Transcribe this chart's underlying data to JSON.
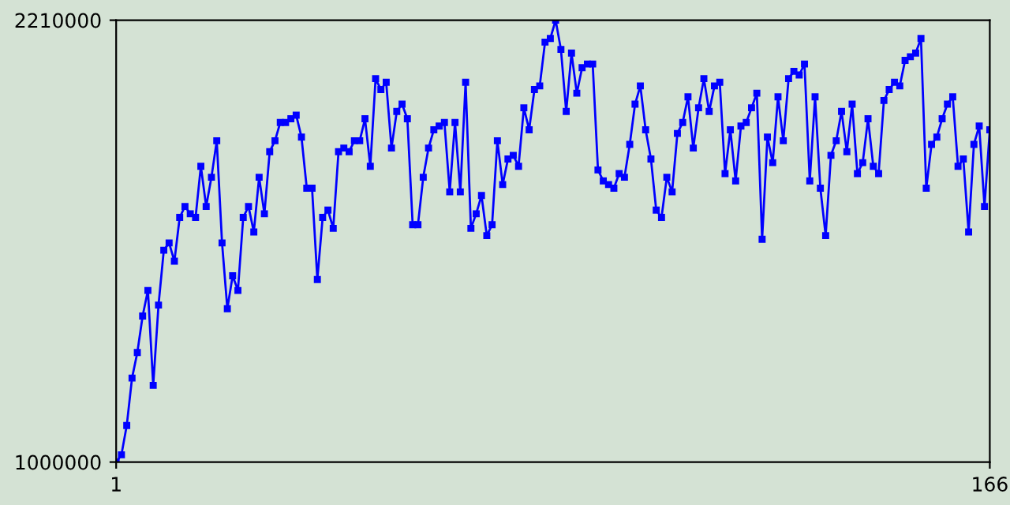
{
  "chart_data": {
    "type": "line",
    "x": [
      1,
      2,
      3,
      4,
      5,
      6,
      7,
      8,
      9,
      10,
      11,
      12,
      13,
      14,
      15,
      16,
      17,
      18,
      19,
      20,
      21,
      22,
      23,
      24,
      25,
      26,
      27,
      28,
      29,
      30,
      31,
      32,
      33,
      34,
      35,
      36,
      37,
      38,
      39,
      40,
      41,
      42,
      43,
      44,
      45,
      46,
      47,
      48,
      49,
      50,
      51,
      52,
      53,
      54,
      55,
      56,
      57,
      58,
      59,
      60,
      61,
      62,
      63,
      64,
      65,
      66,
      67,
      68,
      69,
      70,
      71,
      72,
      73,
      74,
      75,
      76,
      77,
      78,
      79,
      80,
      81,
      82,
      83,
      84,
      85,
      86,
      87,
      88,
      89,
      90,
      91,
      92,
      93,
      94,
      95,
      96,
      97,
      98,
      99,
      100,
      101,
      102,
      103,
      104,
      105,
      106,
      107,
      108,
      109,
      110,
      111,
      112,
      113,
      114,
      115,
      116,
      117,
      118,
      119,
      120,
      121,
      122,
      123,
      124,
      125,
      126,
      127,
      128,
      129,
      130,
      131,
      132,
      133,
      134,
      135,
      136,
      137,
      138,
      139,
      140,
      141,
      142,
      143,
      144,
      145,
      146,
      147,
      148,
      149,
      150,
      151,
      152,
      153,
      154,
      155,
      156,
      157,
      158,
      159,
      160,
      161,
      162,
      163,
      164,
      165,
      166
    ],
    "series": [
      {
        "color": "#0000ff",
        "values": [
          1000000,
          1020000,
          1100000,
          1230000,
          1300000,
          1400000,
          1470000,
          1210000,
          1430000,
          1580000,
          1600000,
          1550000,
          1670000,
          1700000,
          1680000,
          1670000,
          1810000,
          1700000,
          1780000,
          1880000,
          1600000,
          1420000,
          1510000,
          1470000,
          1670000,
          1700000,
          1630000,
          1780000,
          1680000,
          1850000,
          1880000,
          1930000,
          1930000,
          1940000,
          1950000,
          1890000,
          1750000,
          1750000,
          1500000,
          1670000,
          1690000,
          1640000,
          1850000,
          1860000,
          1850000,
          1880000,
          1880000,
          1940000,
          1810000,
          2050000,
          2020000,
          2040000,
          1860000,
          1960000,
          1980000,
          1940000,
          1650000,
          1650000,
          1780000,
          1860000,
          1910000,
          1920000,
          1930000,
          1740000,
          1930000,
          1740000,
          2040000,
          1640000,
          1680000,
          1730000,
          1620000,
          1650000,
          1880000,
          1760000,
          1830000,
          1840000,
          1810000,
          1970000,
          1910000,
          2020000,
          2030000,
          2150000,
          2160000,
          2210000,
          2130000,
          1960000,
          2120000,
          2010000,
          2080000,
          2090000,
          2090000,
          1800000,
          1770000,
          1760000,
          1750000,
          1790000,
          1780000,
          1870000,
          1980000,
          2030000,
          1910000,
          1830000,
          1690000,
          1670000,
          1780000,
          1740000,
          1900000,
          1930000,
          2000000,
          1860000,
          1970000,
          2050000,
          1960000,
          2030000,
          2040000,
          1790000,
          1910000,
          1770000,
          1920000,
          1930000,
          1970000,
          2010000,
          1610000,
          1890000,
          1820000,
          2000000,
          1880000,
          2050000,
          2070000,
          2060000,
          2090000,
          1770000,
          2000000,
          1750000,
          1620000,
          1840000,
          1880000,
          1960000,
          1850000,
          1980000,
          1790000,
          1820000,
          1940000,
          1810000,
          1790000,
          1990000,
          2020000,
          2040000,
          2030000,
          2100000,
          2110000,
          2120000,
          2160000,
          1750000,
          1870000,
          1890000,
          1940000,
          1980000,
          2000000,
          1810000,
          1830000,
          1630000,
          1870000,
          1920000,
          1700000,
          1910000
        ]
      }
    ],
    "xlim": [
      1,
      166
    ],
    "xticks": [
      1,
      166
    ],
    "ylim": [
      1000000,
      2210000
    ],
    "yticks": [
      1000000,
      2210000
    ],
    "marker": "square",
    "line_style": "solid",
    "grid": false
  }
}
